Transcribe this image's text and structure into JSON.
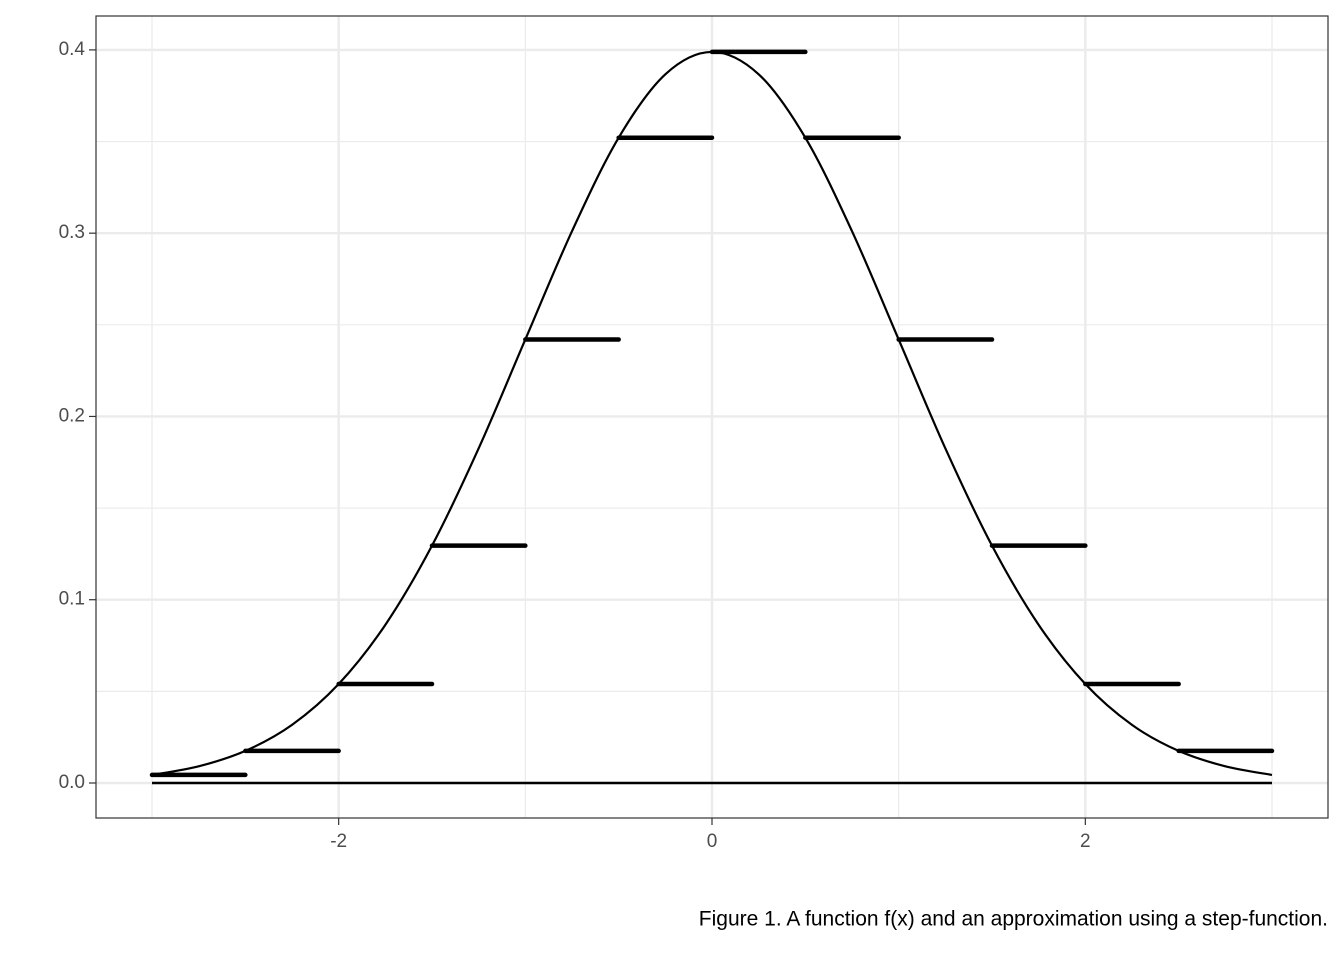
{
  "chart_data": {
    "type": "line",
    "caption": "Figure 1. A function f(x) and an approximation using a step-function.",
    "x": [
      -3,
      -2.75,
      -2.5,
      -2.25,
      -2,
      -1.75,
      -1.5,
      -1.25,
      -1,
      -0.75,
      -0.5,
      -0.25,
      0,
      0.25,
      0.5,
      0.75,
      1,
      1.25,
      1.5,
      1.75,
      2,
      2.25,
      2.5,
      2.75,
      3
    ],
    "values": [
      0.0044,
      0.0091,
      0.0175,
      0.0317,
      0.054,
      0.0863,
      0.1295,
      0.1826,
      0.242,
      0.3011,
      0.3521,
      0.3867,
      0.3989,
      0.3867,
      0.3521,
      0.3011,
      0.242,
      0.1826,
      0.1295,
      0.0863,
      0.054,
      0.0317,
      0.0175,
      0.0091,
      0.0044
    ],
    "step_edges": [
      -3,
      -2.5,
      -2,
      -1.5,
      -1,
      -0.5,
      0,
      0.5,
      1,
      1.5,
      2,
      2.5,
      3
    ],
    "step_values": [
      0.0044,
      0.0175,
      0.054,
      0.1295,
      0.242,
      0.3521,
      0.3989,
      0.3521,
      0.242,
      0.1295,
      0.054,
      0.0175
    ],
    "hline": 0,
    "color": "#000000",
    "xlim": [
      -3.3,
      3.3
    ],
    "ylim": [
      -0.0191,
      0.4185
    ],
    "xticks": [
      -2,
      0,
      2
    ],
    "yticks": [
      {
        "value": 0,
        "label": "0.0"
      },
      0.1,
      0.2,
      0.3,
      0.4
    ],
    "grid": true
  }
}
